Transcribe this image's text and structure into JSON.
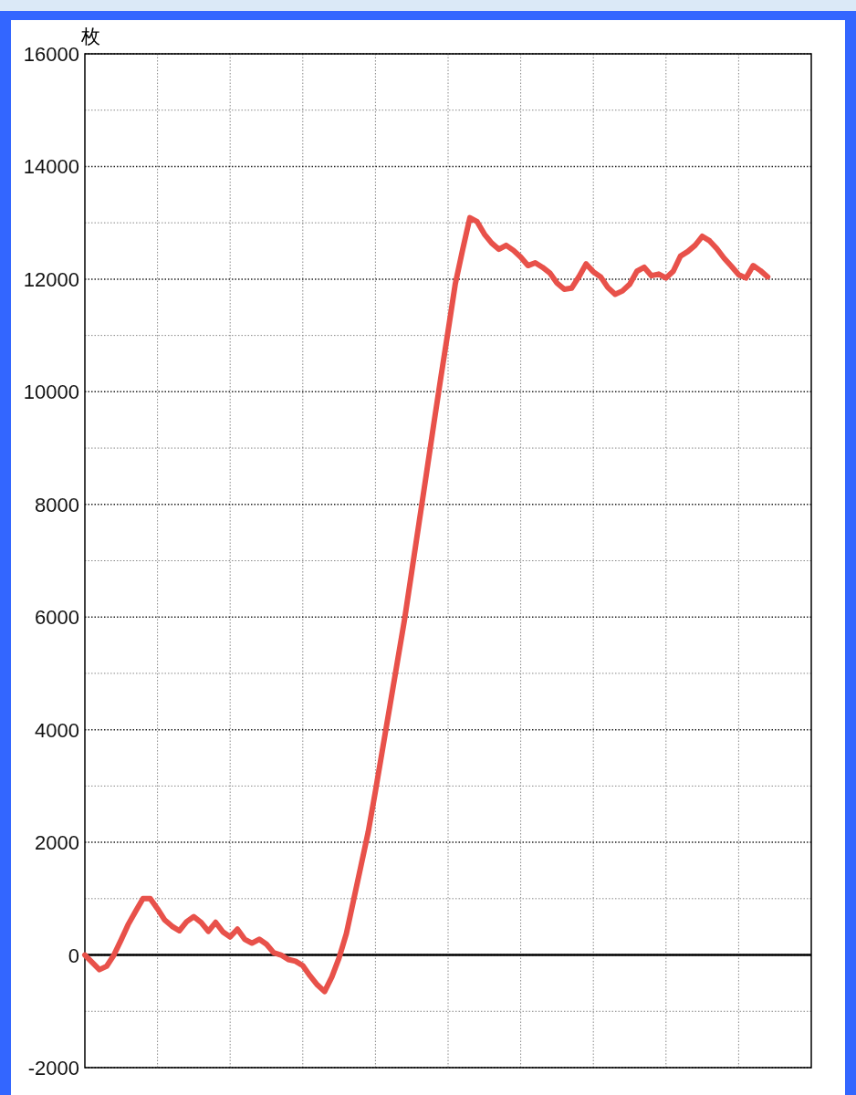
{
  "chart_data": {
    "type": "line",
    "ylabel": "枚",
    "categories": [
      null,
      null,
      null,
      null,
      null,
      null,
      null,
      null,
      null,
      null,
      null,
      null,
      null,
      null,
      null,
      null,
      null,
      null,
      null,
      null,
      null,
      null,
      null,
      null,
      null,
      null,
      null,
      null,
      null,
      null,
      null,
      null,
      null,
      null,
      null,
      null,
      null,
      null,
      null,
      null,
      null,
      null,
      null,
      null,
      null,
      null,
      null,
      null,
      null,
      null,
      null,
      null,
      null,
      null,
      null,
      null,
      null,
      null,
      null,
      null,
      null,
      null,
      null,
      null,
      null,
      null,
      null,
      null,
      null,
      null,
      null,
      null,
      null,
      null,
      null,
      null,
      null,
      null,
      null,
      null,
      null,
      null,
      null,
      null,
      null,
      null,
      null,
      null,
      null,
      null,
      null,
      null,
      null,
      null,
      null
    ],
    "series": [
      {
        "color": "#e8514a",
        "values": [
          0,
          -130,
          -260,
          -200,
          0,
          270,
          550,
          780,
          1000,
          1000,
          820,
          620,
          510,
          430,
          590,
          680,
          580,
          420,
          580,
          410,
          320,
          460,
          280,
          210,
          280,
          190,
          40,
          0,
          -80,
          -110,
          -190,
          -370,
          -530,
          -650,
          -390,
          -50,
          380,
          980,
          1580,
          2180,
          2910,
          3670,
          4430,
          5190,
          5950,
          6810,
          7670,
          8530,
          9400,
          10250,
          11080,
          11920,
          12520,
          13090,
          13020,
          12800,
          12640,
          12530,
          12600,
          12510,
          12390,
          12240,
          12290,
          12210,
          12110,
          11930,
          11820,
          11840,
          12040,
          12270,
          12130,
          12040,
          11850,
          11730,
          11790,
          11910,
          12140,
          12210,
          12060,
          12090,
          12020,
          12140,
          12410,
          12490,
          12600,
          12760,
          12680,
          12540,
          12370,
          12230,
          12080,
          12020,
          12240,
          12150,
          12040
        ]
      }
    ],
    "ylim": [
      -2000,
      16000
    ],
    "yticks": [
      -2000,
      {
        "value": -1000,
        "label": null
      },
      0,
      {
        "value": 1000,
        "label": null
      },
      2000,
      {
        "value": 3000,
        "label": null
      },
      4000,
      {
        "value": 5000,
        "label": null
      },
      6000,
      {
        "value": 7000,
        "label": null
      },
      8000,
      {
        "value": 9000,
        "label": null
      },
      10000,
      {
        "value": 11000,
        "label": null
      },
      12000,
      {
        "value": 13000,
        "label": null
      },
      14000,
      {
        "value": 15000,
        "label": null
      },
      16000
    ],
    "grid": true,
    "ref_lines": [
      {
        "axis": "y",
        "value": 0,
        "color": "#000000"
      }
    ]
  }
}
